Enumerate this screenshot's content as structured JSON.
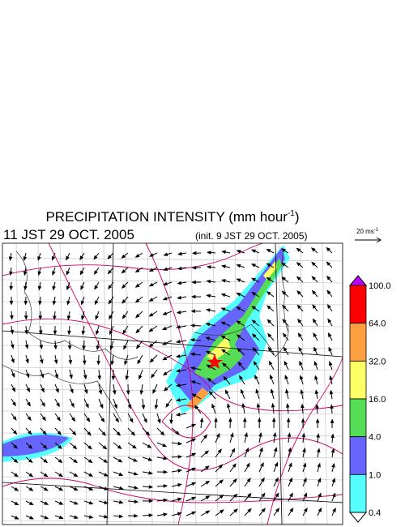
{
  "header": {
    "title": {
      "main": "PRECIPITATION INTENSITY (mm hour",
      "exponent": "-1",
      "close": ")"
    },
    "valid_time": "11 JST 29 OCT. 2005",
    "init_time": "(init. 9 JST 29 OCT. 2005)"
  },
  "reference_vector": {
    "label": "20 ms",
    "exponent": "-1"
  },
  "colorbar": {
    "labels": [
      "100.0",
      "64.0",
      "32.0",
      "16.0",
      "4.0",
      "1.0",
      "0.4"
    ],
    "colors": [
      "#ff0000",
      "#ffa040",
      "#ffff66",
      "#55dd55",
      "#6666ff",
      "#55ffff"
    ],
    "over_color": "#c000ff",
    "under_color": "#ffffff"
  }
}
